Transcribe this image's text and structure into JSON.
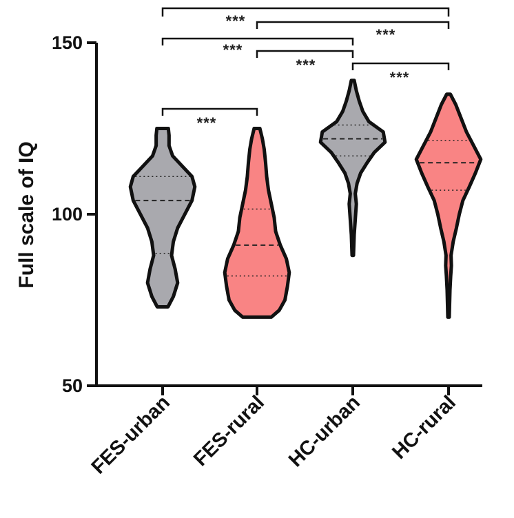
{
  "chart_data": {
    "type": "violin",
    "ylabel": "Full scale of IQ",
    "ylim": [
      50,
      150
    ],
    "yticks": [
      50,
      100,
      150
    ],
    "categories": [
      "FES-urban",
      "FES-rural",
      "HC-urban",
      "HC-rural"
    ],
    "colors": {
      "FES-urban": "#a9a9ae",
      "FES-rural": "#f98484",
      "HC-urban": "#a9a9ae",
      "HC-rural": "#f98484"
    },
    "series": [
      {
        "category": "FES-urban",
        "min": 73,
        "max": 125,
        "q1": 88.5,
        "median": 104,
        "q3": 111,
        "profile": [
          [
            73,
            0.15
          ],
          [
            76,
            0.3
          ],
          [
            80,
            0.42
          ],
          [
            84,
            0.35
          ],
          [
            88,
            0.25
          ],
          [
            92,
            0.3
          ],
          [
            96,
            0.42
          ],
          [
            100,
            0.62
          ],
          [
            104,
            0.82
          ],
          [
            108,
            0.9
          ],
          [
            111,
            0.82
          ],
          [
            114,
            0.55
          ],
          [
            117,
            0.28
          ],
          [
            120,
            0.18
          ],
          [
            123,
            0.18
          ],
          [
            125,
            0.16
          ]
        ]
      },
      {
        "category": "FES-rural",
        "min": 70,
        "max": 125,
        "q1": 82,
        "median": 91,
        "q3": 101.5,
        "profile": [
          [
            70,
            0.4
          ],
          [
            72,
            0.62
          ],
          [
            75,
            0.78
          ],
          [
            79,
            0.85
          ],
          [
            83,
            0.9
          ],
          [
            87,
            0.82
          ],
          [
            91,
            0.65
          ],
          [
            95,
            0.52
          ],
          [
            99,
            0.48
          ],
          [
            103,
            0.4
          ],
          [
            107,
            0.32
          ],
          [
            111,
            0.27
          ],
          [
            115,
            0.24
          ],
          [
            119,
            0.2
          ],
          [
            122,
            0.15
          ],
          [
            125,
            0.08
          ]
        ]
      },
      {
        "category": "HC-urban",
        "min": 88,
        "max": 139,
        "q1": 117,
        "median": 122,
        "q3": 126,
        "profile": [
          [
            88,
            0.02
          ],
          [
            91,
            0.03
          ],
          [
            94,
            0.04
          ],
          [
            97,
            0.06
          ],
          [
            100,
            0.08
          ],
          [
            103,
            0.1
          ],
          [
            106,
            0.07
          ],
          [
            109,
            0.12
          ],
          [
            112,
            0.22
          ],
          [
            115,
            0.4
          ],
          [
            118,
            0.6
          ],
          [
            121,
            0.9
          ],
          [
            124,
            0.85
          ],
          [
            127,
            0.45
          ],
          [
            130,
            0.28
          ],
          [
            133,
            0.18
          ],
          [
            136,
            0.1
          ],
          [
            139,
            0.04
          ]
        ]
      },
      {
        "category": "HC-rural",
        "min": 70,
        "max": 135,
        "q1": 107,
        "median": 115,
        "q3": 121.5,
        "profile": [
          [
            70,
            0.02
          ],
          [
            74,
            0.03
          ],
          [
            78,
            0.04
          ],
          [
            82,
            0.06
          ],
          [
            85,
            0.08
          ],
          [
            88,
            0.07
          ],
          [
            92,
            0.13
          ],
          [
            96,
            0.22
          ],
          [
            100,
            0.3
          ],
          [
            104,
            0.4
          ],
          [
            108,
            0.58
          ],
          [
            112,
            0.75
          ],
          [
            116,
            0.9
          ],
          [
            120,
            0.7
          ],
          [
            124,
            0.5
          ],
          [
            128,
            0.35
          ],
          [
            132,
            0.2
          ],
          [
            135,
            0.05
          ]
        ]
      }
    ],
    "significance": [
      {
        "from": "FES-urban",
        "to": "FES-rural",
        "label": "***"
      },
      {
        "from": "HC-urban",
        "to": "HC-rural",
        "label": "***"
      },
      {
        "from": "FES-rural",
        "to": "HC-urban",
        "label": "***"
      },
      {
        "from": "FES-urban",
        "to": "HC-urban",
        "label": "***"
      },
      {
        "from": "FES-rural",
        "to": "HC-rural",
        "label": "***"
      },
      {
        "from": "FES-urban",
        "to": "HC-rural",
        "label": "***"
      }
    ]
  }
}
